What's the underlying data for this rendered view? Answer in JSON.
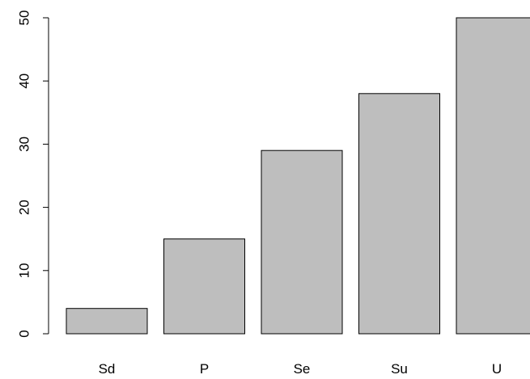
{
  "chart_data": {
    "type": "bar",
    "categories": [
      "Sd",
      "P",
      "Se",
      "Su",
      "U"
    ],
    "values": [
      4,
      15,
      29,
      38,
      50
    ],
    "title": "",
    "xlabel": "",
    "ylabel": "",
    "ylim": [
      0,
      50
    ],
    "y_ticks": [
      "0",
      "10",
      "20",
      "30",
      "40",
      "50"
    ],
    "grid": false,
    "legend": "none",
    "colors": {
      "bar_fill": "#bebebe",
      "bar_stroke": "#000000",
      "axis": "#000000",
      "background": "#ffffff"
    }
  }
}
